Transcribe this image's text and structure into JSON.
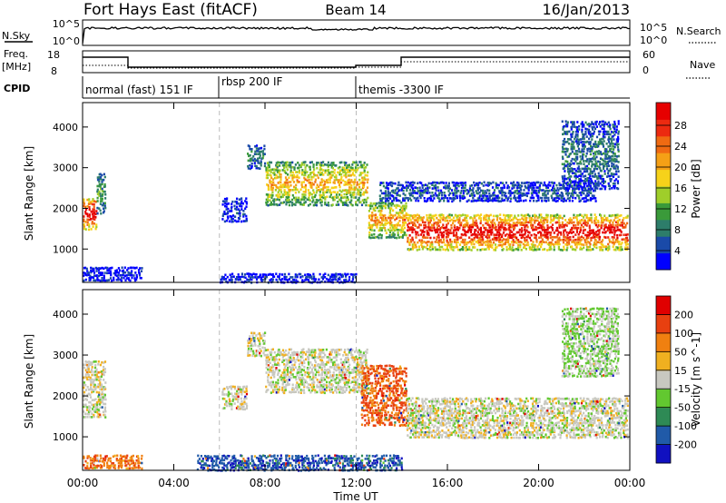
{
  "header": {
    "station": "Fort Hays East (fitACF)",
    "beam": "Beam 14",
    "date": "16/Jan/2013"
  },
  "noise_panel": {
    "left_label": "N.Sky",
    "right_label": "N.Search",
    "ticks": [
      "10^5",
      "10^0"
    ]
  },
  "freq_panel": {
    "left_label_line1": "Freq.",
    "left_label_line2": "[MHz]",
    "right_label": "Nave",
    "left_ticks": [
      "18",
      "8"
    ],
    "right_ticks": [
      "60",
      "0"
    ]
  },
  "cpid_panel": {
    "label": "CPID",
    "segments": [
      {
        "start_hour": 0,
        "label": "normal (fast) 151 IF"
      },
      {
        "start_hour": 6,
        "label": "rbsp 200 IF"
      },
      {
        "start_hour": 12,
        "label": "themis -3300 IF"
      }
    ]
  },
  "chart_data": [
    {
      "type": "heatmap",
      "title": "",
      "xlabel": "Time UT",
      "ylabel": "Slant Range [km]",
      "xlim": [
        0,
        24
      ],
      "ylim": [
        180,
        4600
      ],
      "x_ticks": [
        "00:00",
        "04:00",
        "08:00",
        "12:00",
        "16:00",
        "20:00",
        "00:00"
      ],
      "y_ticks": [
        1000,
        2000,
        3000,
        4000
      ],
      "colorbar": {
        "label": "Power [dB]",
        "ticks": [
          "28",
          "24",
          "20",
          "16",
          "12",
          "8",
          "4"
        ],
        "colors": [
          "#0000ff",
          "#1a4aa8",
          "#2d7d6a",
          "#3a9a3a",
          "#9fce2a",
          "#f6d21a",
          "#f5a016",
          "#f06a12",
          "#ec2a10",
          "#e60000"
        ]
      },
      "echo_bands": [
        {
          "t": [
            0.0,
            0.6
          ],
          "r": [
            1500,
            2300
          ],
          "level": 0.9
        },
        {
          "t": [
            0.6,
            1.0
          ],
          "r": [
            1900,
            2900
          ],
          "level": 0.3
        },
        {
          "t": [
            0.0,
            2.6
          ],
          "r": [
            250,
            600
          ],
          "level": 0.05
        },
        {
          "t": [
            6.1,
            7.2
          ],
          "r": [
            1700,
            2300
          ],
          "level": 0.1
        },
        {
          "t": [
            7.2,
            8.0
          ],
          "r": [
            3000,
            3600
          ],
          "level": 0.25
        },
        {
          "t": [
            8.0,
            12.5
          ],
          "r": [
            2100,
            3200
          ],
          "level": 0.55
        },
        {
          "t": [
            12.5,
            14.2
          ],
          "r": [
            1300,
            2200
          ],
          "level": 0.6
        },
        {
          "t": [
            14.2,
            23.9
          ],
          "r": [
            1000,
            1900
          ],
          "level": 0.85
        },
        {
          "t": [
            13.0,
            22.5
          ],
          "r": [
            2200,
            2700
          ],
          "level": 0.15
        },
        {
          "t": [
            21.0,
            23.5
          ],
          "r": [
            2500,
            4200
          ],
          "level": 0.2
        },
        {
          "t": [
            6.0,
            12.0
          ],
          "r": [
            200,
            450
          ],
          "level": 0.05
        }
      ]
    },
    {
      "type": "heatmap",
      "title": "",
      "xlabel": "Time UT",
      "ylabel": "Slant Range [km]",
      "xlim": [
        0,
        24
      ],
      "ylim": [
        180,
        4600
      ],
      "x_ticks": [
        "00:00",
        "04:00",
        "08:00",
        "12:00",
        "16:00",
        "20:00",
        "00:00"
      ],
      "y_ticks": [
        1000,
        2000,
        3000,
        4000
      ],
      "colorbar": {
        "label": "Velocity [m s^-1]",
        "ticks": [
          "200",
          "100",
          "50",
          "15",
          "-15",
          "-50",
          "-100",
          "-200"
        ],
        "colors": [
          "#1010c0",
          "#205aa8",
          "#2e8a55",
          "#62c830",
          "#c8c8c0",
          "#f0b020",
          "#f08010",
          "#e84010",
          "#e00000"
        ]
      },
      "echo_bands": [
        {
          "t": [
            0.0,
            1.0
          ],
          "r": [
            1500,
            2900
          ],
          "level": 0.5
        },
        {
          "t": [
            0.0,
            2.6
          ],
          "r": [
            250,
            600
          ],
          "level": 0.75
        },
        {
          "t": [
            6.1,
            7.2
          ],
          "r": [
            1700,
            2300
          ],
          "level": 0.5
        },
        {
          "t": [
            7.2,
            8.0
          ],
          "r": [
            3000,
            3600
          ],
          "level": 0.5
        },
        {
          "t": [
            8.0,
            12.5
          ],
          "r": [
            2100,
            3200
          ],
          "level": 0.5
        },
        {
          "t": [
            12.2,
            14.2
          ],
          "r": [
            1300,
            2800
          ],
          "level": 0.8
        },
        {
          "t": [
            14.2,
            23.9
          ],
          "r": [
            1000,
            2000
          ],
          "level": 0.5
        },
        {
          "t": [
            21.0,
            23.5
          ],
          "r": [
            2500,
            4200
          ],
          "level": 0.45
        },
        {
          "t": [
            5.0,
            14.0
          ],
          "r": [
            200,
            600
          ],
          "level": 0.15
        }
      ]
    }
  ]
}
